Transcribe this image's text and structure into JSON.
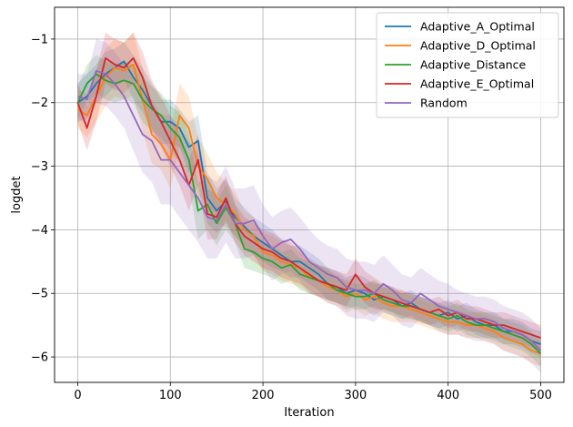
{
  "chart_data": {
    "type": "line",
    "title": "",
    "xlabel": "Iteration",
    "ylabel": "logdet",
    "xlim": [
      -25,
      525
    ],
    "ylim": [
      -6.4,
      -0.5
    ],
    "x_ticks": [
      0,
      100,
      200,
      300,
      400,
      500
    ],
    "x_tick_labels": [
      "0",
      "100",
      "200",
      "300",
      "400",
      "500"
    ],
    "y_ticks": [
      -6,
      -5,
      -4,
      -3,
      -2,
      -1
    ],
    "y_tick_labels": [
      "−6",
      "−5",
      "−4",
      "−3",
      "−2",
      "−1"
    ],
    "grid": true,
    "legend_position": "top-right",
    "bands": "shaded spread around each series",
    "series": [
      {
        "name": "Adaptive_A_Optimal",
        "color": "#1f77b4",
        "x": [
          0,
          10,
          20,
          30,
          40,
          50,
          60,
          70,
          80,
          90,
          100,
          110,
          120,
          130,
          140,
          150,
          160,
          170,
          180,
          190,
          200,
          210,
          220,
          230,
          240,
          250,
          260,
          270,
          280,
          290,
          300,
          310,
          320,
          330,
          340,
          350,
          360,
          370,
          380,
          390,
          400,
          410,
          420,
          430,
          440,
          450,
          460,
          470,
          480,
          490,
          500
        ],
        "y": [
          -2.0,
          -1.9,
          -1.7,
          -1.55,
          -1.45,
          -1.35,
          -1.6,
          -1.8,
          -2.05,
          -2.3,
          -2.3,
          -2.4,
          -2.7,
          -2.6,
          -3.5,
          -3.7,
          -3.55,
          -3.8,
          -3.95,
          -4.1,
          -4.2,
          -4.3,
          -4.4,
          -4.5,
          -4.5,
          -4.6,
          -4.7,
          -4.85,
          -4.9,
          -5.0,
          -4.95,
          -5.0,
          -5.1,
          -5.05,
          -5.1,
          -5.2,
          -5.15,
          -5.25,
          -5.3,
          -5.35,
          -5.3,
          -5.4,
          -5.35,
          -5.45,
          -5.5,
          -5.5,
          -5.6,
          -5.6,
          -5.65,
          -5.75,
          -5.8
        ],
        "band": [
          0.3,
          0.35,
          0.3,
          0.35,
          0.3,
          0.3,
          0.35,
          0.35,
          0.35,
          0.35,
          0.35,
          0.3,
          0.4,
          0.4,
          0.4,
          0.35,
          0.35,
          0.3,
          0.3,
          0.3,
          0.3,
          0.3,
          0.25,
          0.25,
          0.25,
          0.25,
          0.25,
          0.25,
          0.25,
          0.25,
          0.25,
          0.25,
          0.25,
          0.2,
          0.2,
          0.2,
          0.2,
          0.2,
          0.2,
          0.2,
          0.2,
          0.2,
          0.2,
          0.2,
          0.2,
          0.2,
          0.2,
          0.2,
          0.2,
          0.2,
          0.2
        ]
      },
      {
        "name": "Adaptive_D_Optimal",
        "color": "#ff7f0e",
        "x": [
          0,
          10,
          20,
          30,
          40,
          50,
          60,
          70,
          80,
          90,
          100,
          110,
          120,
          130,
          140,
          150,
          160,
          170,
          180,
          190,
          200,
          210,
          220,
          230,
          240,
          250,
          260,
          270,
          280,
          290,
          300,
          310,
          320,
          330,
          340,
          350,
          360,
          370,
          380,
          390,
          400,
          410,
          420,
          430,
          440,
          450,
          460,
          470,
          480,
          490,
          500
        ],
        "y": [
          -2.1,
          -2.2,
          -1.9,
          -1.6,
          -1.45,
          -1.5,
          -1.4,
          -1.95,
          -2.5,
          -2.65,
          -2.9,
          -2.2,
          -2.4,
          -3.0,
          -3.2,
          -3.5,
          -3.6,
          -3.75,
          -4.0,
          -4.1,
          -4.35,
          -4.4,
          -4.5,
          -4.55,
          -4.6,
          -4.75,
          -4.8,
          -4.9,
          -4.95,
          -5.05,
          -5.0,
          -5.1,
          -5.05,
          -5.15,
          -5.2,
          -5.2,
          -5.25,
          -5.3,
          -5.35,
          -5.4,
          -5.45,
          -5.45,
          -5.5,
          -5.5,
          -5.55,
          -5.6,
          -5.7,
          -5.75,
          -5.8,
          -5.9,
          -5.95
        ],
        "band": [
          0.3,
          0.35,
          0.4,
          0.45,
          0.45,
          0.45,
          0.5,
          0.5,
          0.45,
          0.4,
          0.45,
          0.5,
          0.5,
          0.45,
          0.4,
          0.4,
          0.35,
          0.35,
          0.3,
          0.3,
          0.3,
          0.3,
          0.3,
          0.3,
          0.3,
          0.25,
          0.25,
          0.25,
          0.25,
          0.25,
          0.25,
          0.25,
          0.25,
          0.25,
          0.25,
          0.25,
          0.2,
          0.2,
          0.2,
          0.2,
          0.2,
          0.2,
          0.2,
          0.2,
          0.2,
          0.2,
          0.2,
          0.2,
          0.2,
          0.2,
          0.2
        ]
      },
      {
        "name": "Adaptive_Distance",
        "color": "#2ca02c",
        "x": [
          0,
          10,
          20,
          30,
          40,
          50,
          60,
          70,
          80,
          90,
          100,
          110,
          120,
          130,
          140,
          150,
          160,
          170,
          180,
          190,
          200,
          210,
          220,
          230,
          240,
          250,
          260,
          270,
          280,
          290,
          300,
          310,
          320,
          330,
          340,
          350,
          360,
          370,
          380,
          390,
          400,
          410,
          420,
          430,
          440,
          450,
          460,
          470,
          480,
          490,
          500
        ],
        "y": [
          -2.0,
          -1.7,
          -1.55,
          -1.65,
          -1.7,
          -1.65,
          -1.7,
          -1.95,
          -2.1,
          -2.2,
          -2.4,
          -2.55,
          -2.9,
          -3.7,
          -3.6,
          -3.9,
          -3.65,
          -3.9,
          -4.3,
          -4.35,
          -4.45,
          -4.5,
          -4.6,
          -4.55,
          -4.7,
          -4.75,
          -4.8,
          -4.85,
          -4.95,
          -5.0,
          -5.05,
          -5.05,
          -5.0,
          -5.1,
          -5.15,
          -5.2,
          -5.2,
          -5.25,
          -5.3,
          -5.35,
          -5.4,
          -5.35,
          -5.45,
          -5.5,
          -5.5,
          -5.55,
          -5.6,
          -5.65,
          -5.7,
          -5.8,
          -5.95
        ],
        "band": [
          0.25,
          0.3,
          0.3,
          0.3,
          0.3,
          0.3,
          0.3,
          0.35,
          0.35,
          0.35,
          0.35,
          0.4,
          0.4,
          0.45,
          0.4,
          0.35,
          0.35,
          0.3,
          0.3,
          0.3,
          0.25,
          0.25,
          0.25,
          0.25,
          0.25,
          0.25,
          0.25,
          0.25,
          0.2,
          0.2,
          0.2,
          0.2,
          0.2,
          0.2,
          0.2,
          0.2,
          0.2,
          0.2,
          0.2,
          0.2,
          0.2,
          0.2,
          0.2,
          0.2,
          0.2,
          0.2,
          0.2,
          0.2,
          0.2,
          0.2,
          0.2
        ]
      },
      {
        "name": "Adaptive_E_Optimal",
        "color": "#d62728",
        "x": [
          0,
          10,
          20,
          30,
          40,
          50,
          60,
          70,
          80,
          90,
          100,
          110,
          120,
          130,
          140,
          150,
          160,
          170,
          180,
          190,
          200,
          210,
          220,
          230,
          240,
          250,
          260,
          270,
          280,
          290,
          300,
          310,
          320,
          330,
          340,
          350,
          360,
          370,
          380,
          390,
          400,
          410,
          420,
          430,
          440,
          450,
          460,
          470,
          480,
          490,
          500
        ],
        "y": [
          -2.0,
          -2.4,
          -1.9,
          -1.3,
          -1.4,
          -1.45,
          -1.3,
          -1.6,
          -2.05,
          -2.3,
          -2.6,
          -2.9,
          -3.3,
          -2.9,
          -3.75,
          -3.8,
          -3.5,
          -3.9,
          -4.1,
          -4.2,
          -4.3,
          -4.35,
          -4.45,
          -4.5,
          -4.6,
          -4.7,
          -4.8,
          -4.85,
          -4.9,
          -4.95,
          -4.7,
          -4.9,
          -5.0,
          -5.05,
          -5.1,
          -5.15,
          -5.2,
          -5.25,
          -5.3,
          -5.25,
          -5.35,
          -5.3,
          -5.4,
          -5.4,
          -5.45,
          -5.5,
          -5.5,
          -5.55,
          -5.6,
          -5.65,
          -5.7
        ],
        "band": [
          0.3,
          0.35,
          0.4,
          0.4,
          0.4,
          0.4,
          0.4,
          0.4,
          0.4,
          0.4,
          0.4,
          0.4,
          0.4,
          0.4,
          0.4,
          0.35,
          0.35,
          0.3,
          0.3,
          0.3,
          0.3,
          0.3,
          0.3,
          0.3,
          0.25,
          0.25,
          0.25,
          0.25,
          0.25,
          0.25,
          0.25,
          0.25,
          0.25,
          0.2,
          0.2,
          0.2,
          0.2,
          0.2,
          0.2,
          0.2,
          0.2,
          0.2,
          0.2,
          0.2,
          0.2,
          0.2,
          0.2,
          0.2,
          0.2,
          0.2,
          0.2
        ]
      },
      {
        "name": "Random",
        "color": "#9467bd",
        "x": [
          0,
          10,
          20,
          30,
          40,
          50,
          60,
          70,
          80,
          90,
          100,
          110,
          120,
          130,
          140,
          150,
          160,
          170,
          180,
          190,
          200,
          210,
          220,
          230,
          240,
          250,
          260,
          270,
          280,
          290,
          300,
          310,
          320,
          330,
          340,
          350,
          360,
          370,
          380,
          390,
          400,
          410,
          420,
          430,
          440,
          450,
          460,
          470,
          480,
          490,
          500
        ],
        "y": [
          -1.9,
          -1.95,
          -1.5,
          -1.55,
          -1.7,
          -1.9,
          -2.2,
          -2.5,
          -2.6,
          -2.9,
          -2.9,
          -3.1,
          -3.3,
          -3.5,
          -3.8,
          -3.85,
          -3.6,
          -3.9,
          -3.9,
          -3.85,
          -4.1,
          -4.3,
          -4.2,
          -4.15,
          -4.3,
          -4.5,
          -4.6,
          -4.7,
          -4.75,
          -4.9,
          -4.95,
          -4.95,
          -5.0,
          -4.85,
          -4.95,
          -5.1,
          -5.15,
          -5.0,
          -5.1,
          -5.2,
          -5.25,
          -5.3,
          -5.35,
          -5.4,
          -5.4,
          -5.45,
          -5.55,
          -5.6,
          -5.65,
          -5.75,
          -5.9
        ],
        "band": [
          0.35,
          0.4,
          0.5,
          0.5,
          0.5,
          0.5,
          0.55,
          0.6,
          0.65,
          0.7,
          0.7,
          0.7,
          0.7,
          0.7,
          0.65,
          0.6,
          0.6,
          0.55,
          0.55,
          0.55,
          0.5,
          0.5,
          0.5,
          0.5,
          0.5,
          0.5,
          0.45,
          0.45,
          0.45,
          0.45,
          0.45,
          0.45,
          0.45,
          0.45,
          0.4,
          0.4,
          0.4,
          0.4,
          0.4,
          0.4,
          0.4,
          0.35,
          0.35,
          0.35,
          0.35,
          0.35,
          0.35,
          0.35,
          0.35,
          0.35,
          0.35
        ]
      }
    ]
  }
}
